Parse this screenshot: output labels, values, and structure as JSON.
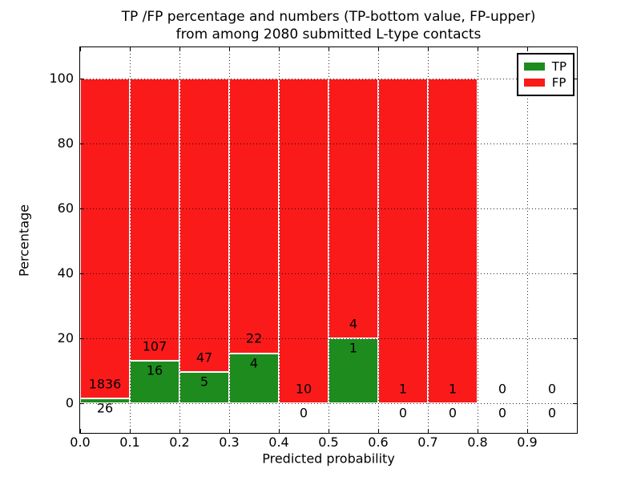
{
  "figure": {
    "title_line1": "TP /FP percentage and numbers (TP-bottom value, FP-upper)",
    "title_line2": "from among 2080 submitted L-type contacts",
    "xlabel": "Predicted probability",
    "ylabel": "Percentage"
  },
  "colors": {
    "tp_green": "#1e8b1e",
    "fp_red": "#fb1a1a",
    "bar_edge": "#ffffff",
    "grid": "#000000",
    "axes": "#000000",
    "background": "#ffffff"
  },
  "legend": {
    "position": "upper right",
    "items": [
      {
        "label": "TP",
        "color_key": "tp_green"
      },
      {
        "label": "FP",
        "color_key": "fp_red"
      }
    ]
  },
  "chart_data": {
    "type": "bar",
    "stacked": true,
    "normalized_to_percent_per_bin": true,
    "title": "TP /FP percentage and numbers (TP-bottom value, FP-upper) from among 2080 submitted L-type contacts",
    "xlabel": "Predicted probability",
    "ylabel": "Percentage",
    "total_submitted": 2080,
    "x_tick_labels": [
      "0.0",
      "0.1",
      "0.2",
      "0.3",
      "0.4",
      "0.5",
      "0.6",
      "0.7",
      "0.8",
      "0.9"
    ],
    "y_ticks": [
      0,
      20,
      40,
      60,
      80,
      100
    ],
    "xlim": [
      0.0,
      1.0
    ],
    "ylim": [
      -9,
      109.6
    ],
    "grid": "dotted, both axes, drawn over bars",
    "legend_entries": [
      "TP",
      "FP"
    ],
    "bins": [
      {
        "range": "0.0-0.1",
        "tp": 26,
        "fp": 1836
      },
      {
        "range": "0.1-0.2",
        "tp": 16,
        "fp": 107
      },
      {
        "range": "0.2-0.3",
        "tp": 5,
        "fp": 47
      },
      {
        "range": "0.3-0.4",
        "tp": 4,
        "fp": 22
      },
      {
        "range": "0.4-0.5",
        "tp": 0,
        "fp": 10
      },
      {
        "range": "0.5-0.6",
        "tp": 1,
        "fp": 4
      },
      {
        "range": "0.6-0.7",
        "tp": 0,
        "fp": 1
      },
      {
        "range": "0.7-0.8",
        "tp": 0,
        "fp": 1
      },
      {
        "range": "0.8-0.9",
        "tp": 0,
        "fp": 0
      },
      {
        "range": "0.9-1.0",
        "tp": 0,
        "fp": 0
      }
    ]
  }
}
